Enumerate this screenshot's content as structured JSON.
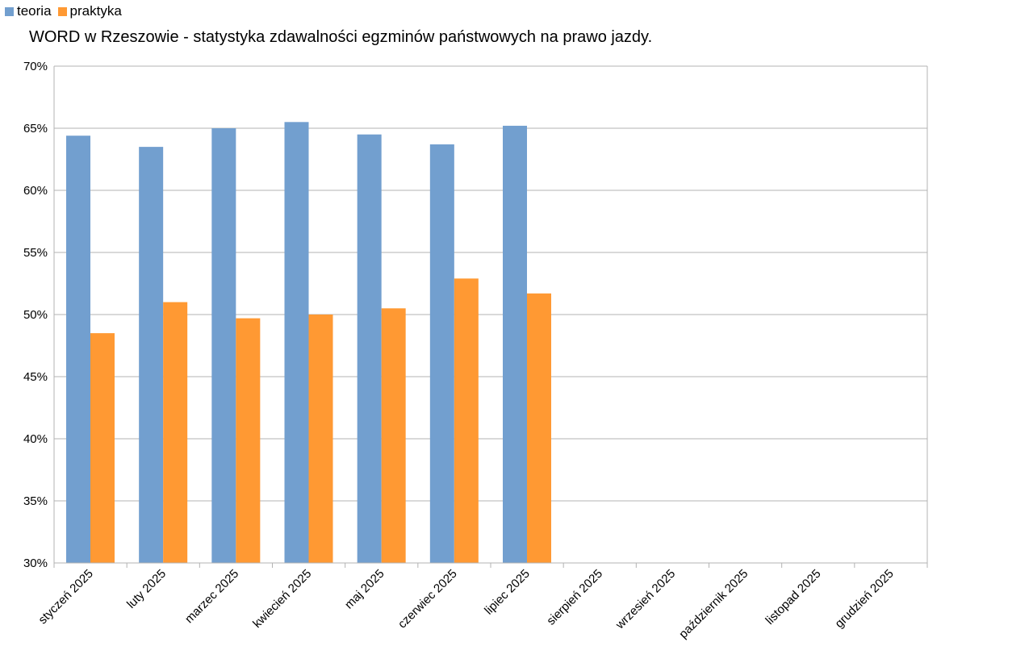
{
  "chart_data": {
    "type": "bar",
    "title": "WORD w Rzeszowie - statystyka zdawalności egzminów państwowych na prawo jazdy.",
    "xlabel": "",
    "ylabel": "",
    "ylim": [
      30,
      70
    ],
    "yticks": [
      30,
      35,
      40,
      45,
      50,
      55,
      60,
      65,
      70
    ],
    "ytick_suffix": "%",
    "grid": true,
    "legend_position": "top-left",
    "categories": [
      "styczeń 2025",
      "luty 2025",
      "marzec 2025",
      "kwiecień 2025",
      "maj 2025",
      "czerwiec 2025",
      "lipiec 2025",
      "sierpień 2025",
      "wrzesień 2025",
      "październik 2025",
      "listopad 2025",
      "grudzień 2025"
    ],
    "series": [
      {
        "name": "teoria",
        "color": "#729fcf",
        "values": [
          64.4,
          63.5,
          65.0,
          65.5,
          64.5,
          63.7,
          65.2,
          null,
          null,
          null,
          null,
          null
        ]
      },
      {
        "name": "praktyka",
        "color": "#ff9933",
        "values": [
          48.5,
          51.0,
          49.7,
          50.0,
          50.5,
          52.9,
          51.7,
          null,
          null,
          null,
          null,
          null
        ]
      }
    ],
    "colors": {
      "grid": "#b3b3b3",
      "axis": "#b3b3b3"
    }
  }
}
